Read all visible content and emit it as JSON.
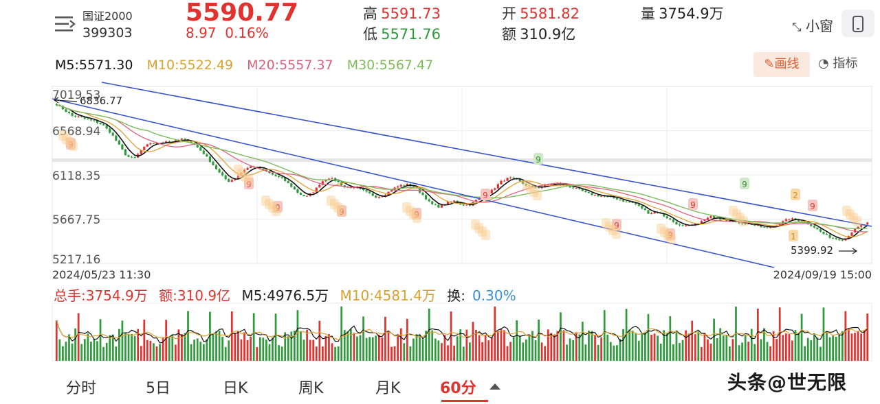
{
  "header": {
    "index_name": "国证2000",
    "index_code": "399303",
    "last_price": "5590.77",
    "change": "8.97",
    "change_pct": "0.16%",
    "high_label": "高",
    "high_value": "5591.73",
    "low_label": "低",
    "low_value": "5571.76",
    "open_label": "开",
    "open_value": "5581.82",
    "amount_label": "额",
    "amount_value": "310.9亿",
    "volume_label": "量",
    "volume_value": "3754.9万",
    "mini_window_label": "小窗"
  },
  "toolbar": {
    "draw_label": "画线",
    "indicator_label": "指标"
  },
  "ma": {
    "m5": "M5:5571.30",
    "m10": "M10:5522.49",
    "m20": "M20:5557.37",
    "m30": "M30:5567.47"
  },
  "volume_info": {
    "total": "总手:3754.9万",
    "amount": "额:310.9亿",
    "m5": "M5:4976.5万",
    "m10": "M10:4581.4万",
    "turnover_label": "换:",
    "turnover_value": "0.30%"
  },
  "tabs": [
    "分时",
    "5日",
    "日K",
    "周K",
    "月K",
    "60分"
  ],
  "watermark": "头条@世无限",
  "colors": {
    "up": "#e0322e",
    "down": "#2e9a3c",
    "m5": "#111111",
    "m10": "#e0a030",
    "m20": "#e06080",
    "m30": "#7dbb5a",
    "trend": "#3a56c8"
  },
  "chart_data": {
    "type": "candlestick",
    "y_ticks": [
      "7019.53",
      "6568.94",
      "6118.35",
      "5667.75",
      "5217.16"
    ],
    "ylim": [
      5217.16,
      7019.53
    ],
    "x_start_label": "2024/05/23 11:30",
    "x_end_label": "2024/09/19 15:00",
    "max_annotation": "6836.77",
    "min_annotation": "5399.92",
    "close_path": [
      6820,
      6760,
      6700,
      6690,
      6660,
      6640,
      6600,
      6520,
      6400,
      6280,
      6260,
      6360,
      6420,
      6410,
      6440,
      6430,
      6460,
      6440,
      6380,
      6300,
      6200,
      6100,
      6020,
      6060,
      6140,
      6180,
      6160,
      6120,
      6080,
      6050,
      5980,
      5900,
      5860,
      5920,
      6020,
      6060,
      6020,
      5960,
      5960,
      5940,
      5900,
      5860,
      5880,
      5940,
      5980,
      5990,
      5960,
      5880,
      5790,
      5760,
      5800,
      5820,
      5780,
      5780,
      5840,
      5880,
      5940,
      6020,
      6060,
      6040,
      5990,
      5960,
      5960,
      5990,
      6000,
      5990,
      5960,
      5940,
      5900,
      5880,
      5870,
      5860,
      5840,
      5810,
      5800,
      5750,
      5690,
      5710,
      5660,
      5610,
      5560,
      5560,
      5580,
      5620,
      5660,
      5640,
      5620,
      5600,
      5590,
      5580,
      5560,
      5540,
      5560,
      5600,
      5640,
      5620,
      5600,
      5560,
      5500,
      5450,
      5430,
      5420,
      5500,
      5560,
      5590
    ],
    "td_count_labels": [
      "9",
      "9",
      "9",
      "9",
      "9",
      "9",
      "9",
      "9",
      "9",
      "9",
      "9",
      "9",
      "1",
      "2"
    ]
  }
}
